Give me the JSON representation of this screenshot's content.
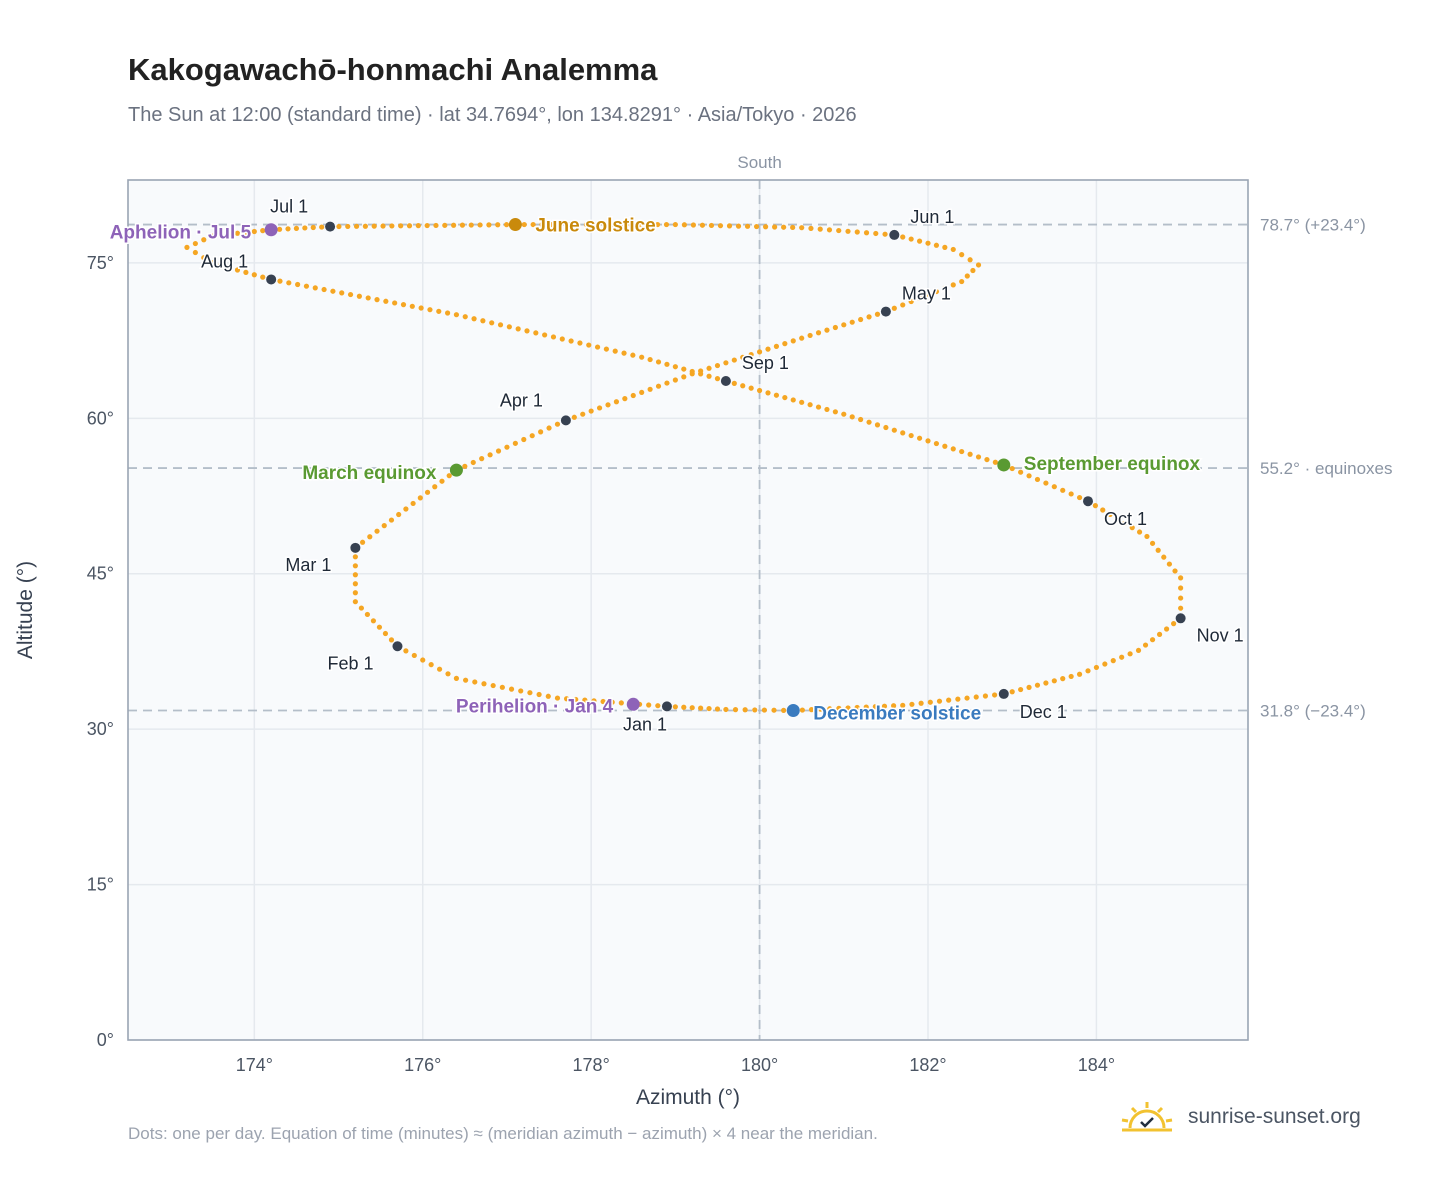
{
  "header": {
    "title": "Kakogawachō-honmachi Analemma",
    "subtitle": "The Sun at 12:00 (standard time) · lat 34.7694°, lon 134.8291° · Asia/Tokyo · 2026"
  },
  "footer": {
    "note": "Dots: one per day. Equation of time (minutes) ≈ (meridian azimuth − azimuth) × 4 near the meridian.",
    "brand": "sunrise-sunset.org",
    "logo_icon": "sun-check-icon"
  },
  "colors": {
    "path": "#f5a623",
    "month_dot": "#374151",
    "apsis": "#8e63b8",
    "june_solstice": "#c98a0c",
    "december_solstice": "#3a7bbf",
    "equinox": "#5a9a32",
    "reference_line": "#b4bec9",
    "grid": "#e5e9ee",
    "plot_bg": "#f8fafc"
  },
  "chart_data": {
    "type": "scatter",
    "xlabel": "Azimuth (°)",
    "ylabel": "Altitude (°)",
    "xlim": [
      172.5,
      185.8
    ],
    "ylim": [
      0,
      83
    ],
    "xticks": [
      174,
      176,
      178,
      180,
      182,
      184
    ],
    "xtick_labels": [
      "174°",
      "176°",
      "178°",
      "180°",
      "182°",
      "184°"
    ],
    "yticks": [
      0,
      15,
      30,
      45,
      60,
      75
    ],
    "ytick_labels": [
      "0°",
      "15°",
      "30°",
      "45°",
      "60°",
      "75°"
    ],
    "grid": true,
    "meridian": {
      "azimuth": 180,
      "label": "South"
    },
    "reference_lines": [
      {
        "altitude": 78.7,
        "label": "78.7° (+23.4°)"
      },
      {
        "altitude": 55.2,
        "label": "55.2° · equinoxes"
      },
      {
        "altitude": 31.8,
        "label": "31.8° (−23.4°)"
      }
    ],
    "series": [
      {
        "role": "daily-path",
        "points": [
          [
            178.9,
            32.2
          ],
          [
            177.6,
            33.0
          ],
          [
            176.4,
            34.9
          ],
          [
            175.7,
            38.0
          ],
          [
            175.2,
            42.3
          ],
          [
            175.2,
            47.5
          ],
          [
            176.4,
            55.0
          ],
          [
            177.7,
            59.8
          ],
          [
            179.2,
            64.3
          ],
          [
            180.6,
            68.0
          ],
          [
            181.5,
            70.3
          ],
          [
            182.4,
            73.2
          ],
          [
            182.6,
            74.8
          ],
          [
            182.3,
            76.3
          ],
          [
            181.6,
            77.7
          ],
          [
            180.5,
            78.4
          ],
          [
            179.0,
            78.7
          ],
          [
            177.1,
            78.7
          ],
          [
            174.9,
            78.5
          ],
          [
            174.2,
            78.2
          ],
          [
            173.5,
            77.6
          ],
          [
            173.2,
            76.5
          ],
          [
            173.5,
            75.0
          ],
          [
            174.2,
            73.4
          ],
          [
            176.4,
            70.0
          ],
          [
            178.6,
            65.9
          ],
          [
            179.6,
            63.6
          ],
          [
            181.0,
            60.4
          ],
          [
            182.9,
            55.5
          ],
          [
            183.9,
            52.0
          ],
          [
            184.6,
            48.6
          ],
          [
            185.0,
            44.6
          ],
          [
            185.0,
            40.7
          ],
          [
            184.5,
            37.6
          ],
          [
            183.8,
            35.3
          ],
          [
            182.9,
            33.4
          ],
          [
            181.7,
            32.3
          ],
          [
            180.4,
            31.8
          ],
          [
            179.6,
            31.9
          ],
          [
            178.9,
            32.2
          ]
        ]
      }
    ],
    "month_markers": [
      {
        "label": "Jan 1",
        "az": 178.9,
        "alt": 32.2
      },
      {
        "label": "Feb 1",
        "az": 175.7,
        "alt": 38.0
      },
      {
        "label": "Mar 1",
        "az": 175.2,
        "alt": 47.5
      },
      {
        "label": "Apr 1",
        "az": 177.7,
        "alt": 59.8
      },
      {
        "label": "May 1",
        "az": 181.5,
        "alt": 70.3
      },
      {
        "label": "Jun 1",
        "az": 181.6,
        "alt": 77.7
      },
      {
        "label": "Jul 1",
        "az": 174.9,
        "alt": 78.5
      },
      {
        "label": "Aug 1",
        "az": 174.2,
        "alt": 73.4
      },
      {
        "label": "Sep 1",
        "az": 179.6,
        "alt": 63.6
      },
      {
        "label": "Oct 1",
        "az": 183.9,
        "alt": 52.0
      },
      {
        "label": "Nov 1",
        "az": 185.0,
        "alt": 40.7
      },
      {
        "label": "Dec 1",
        "az": 182.9,
        "alt": 33.4
      }
    ],
    "events": [
      {
        "label": "June solstice",
        "az": 177.1,
        "alt": 78.7,
        "color_key": "june_solstice"
      },
      {
        "label": "December solstice",
        "az": 180.4,
        "alt": 31.8,
        "color_key": "december_solstice"
      },
      {
        "label": "March equinox",
        "az": 176.4,
        "alt": 55.0,
        "color_key": "equinox"
      },
      {
        "label": "September equinox",
        "az": 182.9,
        "alt": 55.5,
        "color_key": "equinox"
      },
      {
        "label": "Aphelion · Jul 5",
        "az": 174.2,
        "alt": 78.2,
        "color_key": "apsis"
      },
      {
        "label": "Perihelion · Jan 4",
        "az": 178.5,
        "alt": 32.4,
        "color_key": "apsis"
      }
    ]
  }
}
